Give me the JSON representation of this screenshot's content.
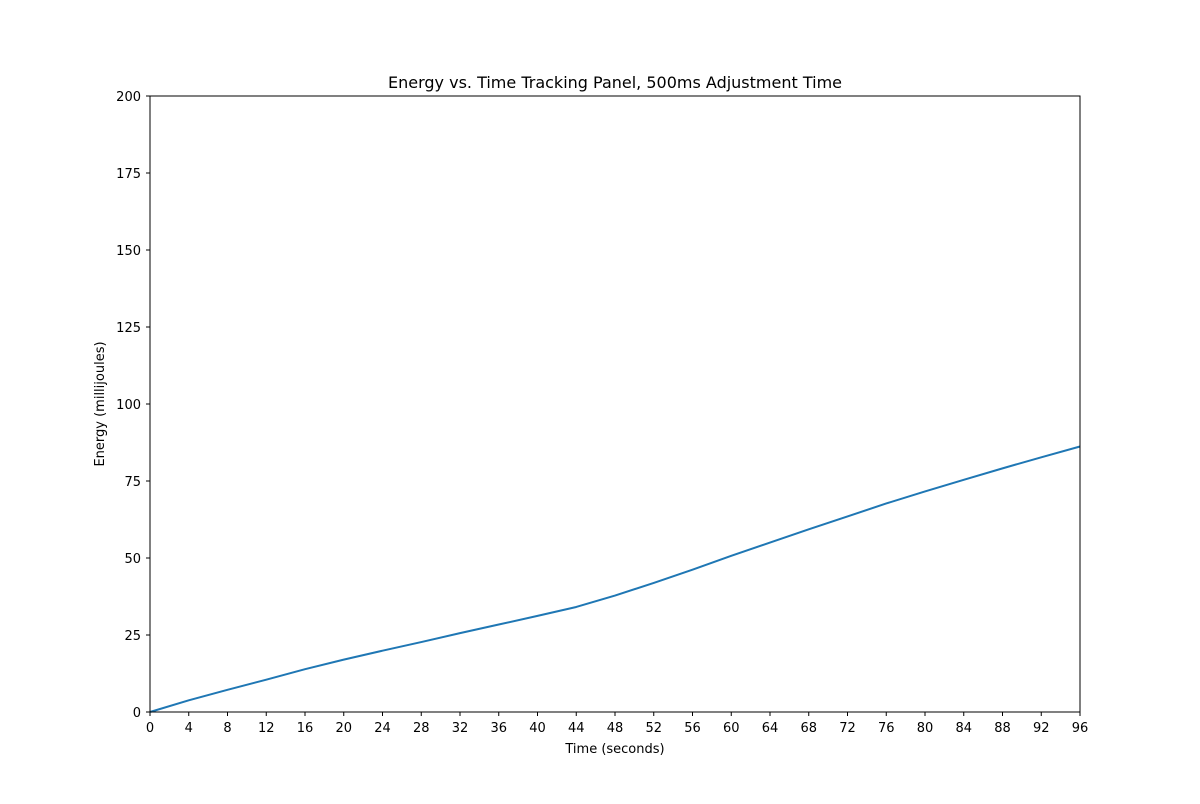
{
  "chart_data": {
    "type": "line",
    "title": "Energy vs. Time Tracking Panel, 500ms Adjustment Time",
    "xlabel": "Time (seconds)",
    "ylabel": "Energy (millijoules)",
    "xlim": [
      0,
      96
    ],
    "ylim": [
      0,
      200
    ],
    "xticks": [
      "0",
      "4",
      "8",
      "12",
      "16",
      "20",
      "24",
      "28",
      "32",
      "36",
      "40",
      "44",
      "48",
      "52",
      "56",
      "60",
      "64",
      "68",
      "72",
      "76",
      "80",
      "84",
      "88",
      "92",
      "96"
    ],
    "yticks": [
      "0",
      "25",
      "50",
      "75",
      "100",
      "125",
      "150",
      "175",
      "200"
    ],
    "grid": false,
    "legend": "none",
    "series": [
      {
        "color": "#1f77b4",
        "x": [
          0,
          4,
          8,
          12,
          16,
          20,
          24,
          28,
          32,
          36,
          40,
          44,
          48,
          52,
          56,
          60,
          64,
          68,
          72,
          76,
          80,
          84,
          88,
          92,
          96
        ],
        "y": [
          0,
          3.8,
          7.2,
          10.5,
          13.9,
          17.0,
          19.9,
          22.7,
          25.6,
          28.4,
          31.2,
          34.1,
          37.8,
          41.9,
          46.2,
          50.7,
          55.0,
          59.3,
          63.5,
          67.7,
          71.6,
          75.4,
          79.1,
          82.7,
          86.2
        ]
      }
    ]
  }
}
